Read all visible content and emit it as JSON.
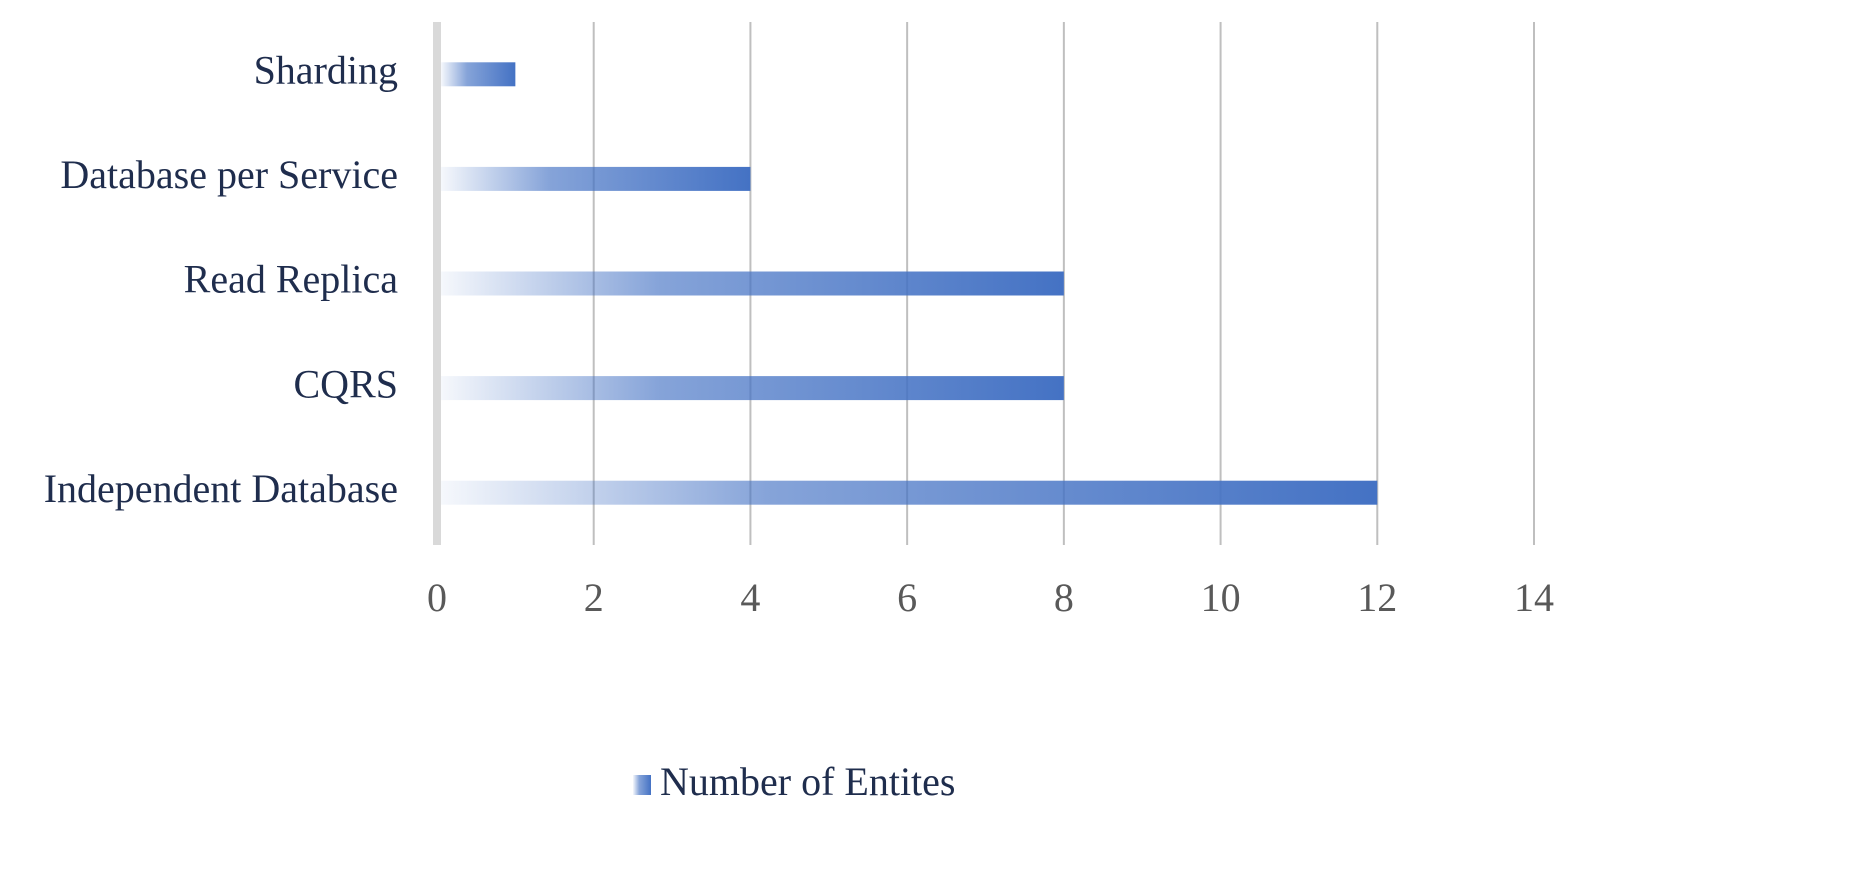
{
  "chart_data": {
    "type": "hbar",
    "categories": [
      "Sharding",
      "Database per Service",
      "Read Replica",
      "CQRS",
      "Independent Database"
    ],
    "series": [
      {
        "name": "Number of Entites",
        "color": "#4472c4",
        "values": [
          1,
          4,
          8,
          8,
          12
        ]
      }
    ],
    "xlim": [
      0,
      14
    ],
    "xticks": [
      0,
      2,
      4,
      6,
      8,
      10,
      12,
      14
    ],
    "grid": true,
    "legend": "bottom"
  }
}
